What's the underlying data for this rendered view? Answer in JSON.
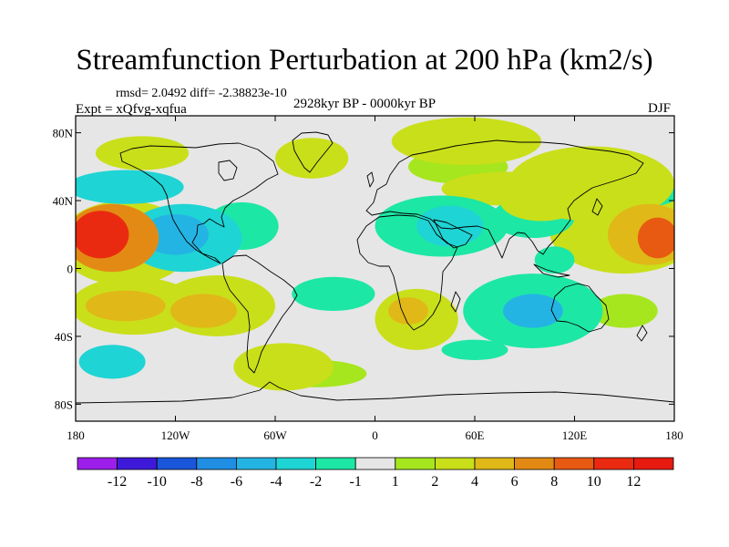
{
  "chart_data": {
    "type": "heatmap",
    "title": "Streamfunction Perturbation at 200 hPa (km2/s)",
    "stats_line": "rmsd= 2.0492 diff= -2.38823e-10",
    "experiment": "Expt = xQfvg-xqfua",
    "period": "2928kyr BP - 0000kyr BP",
    "season": "DJF",
    "x_range": [
      -180,
      180
    ],
    "y_range": [
      -90,
      90
    ],
    "y_ticks": [
      {
        "value": 80,
        "label": "80N"
      },
      {
        "value": 40,
        "label": "40N"
      },
      {
        "value": 0,
        "label": "0"
      },
      {
        "value": -40,
        "label": "40S"
      },
      {
        "value": -80,
        "label": "80S"
      }
    ],
    "x_ticks": [
      {
        "value": -180,
        "label": "180"
      },
      {
        "value": -120,
        "label": "120W"
      },
      {
        "value": -60,
        "label": "60W"
      },
      {
        "value": 0,
        "label": "0"
      },
      {
        "value": 60,
        "label": "60E"
      },
      {
        "value": 120,
        "label": "120E"
      },
      {
        "value": 180,
        "label": "180"
      }
    ],
    "colorbar": {
      "levels": [
        "-12",
        "-10",
        "-8",
        "-6",
        "-4",
        "-2",
        "-1",
        "1",
        "2",
        "4",
        "6",
        "8",
        "10",
        "12"
      ],
      "colors": [
        "#9c1eea",
        "#3f19d9",
        "#1a56d9",
        "#1f8ee3",
        "#24b4e3",
        "#1fd4d4",
        "#1de7a5",
        "#e6e6e6",
        "#a6e61f",
        "#c9df1a",
        "#e0b818",
        "#e38a14",
        "#e85a12",
        "#ea2a10",
        "#e61a0f"
      ]
    },
    "blobs": [
      {
        "lon": -165,
        "lat": 20,
        "rlon": 17,
        "rlat": 14,
        "v": 10
      },
      {
        "lon": -158,
        "lat": 18,
        "rlon": 28,
        "rlat": 20,
        "v": 6
      },
      {
        "lon": -150,
        "lat": 15,
        "rlon": 40,
        "rlat": 25,
        "v": 2.5
      },
      {
        "lon": 170,
        "lat": 18,
        "rlon": 12,
        "rlat": 12,
        "v": 8
      },
      {
        "lon": 165,
        "lat": 20,
        "rlon": 25,
        "rlat": 18,
        "v": 4.5
      },
      {
        "lon": 150,
        "lat": 22,
        "rlon": 45,
        "rlat": 25,
        "v": 2
      },
      {
        "lon": 130,
        "lat": 50,
        "rlon": 50,
        "rlat": 22,
        "v": 2.5
      },
      {
        "lon": 100,
        "lat": 40,
        "rlon": 25,
        "rlat": 12,
        "v": 2.5
      },
      {
        "lon": 55,
        "lat": 75,
        "rlon": 45,
        "rlat": 14,
        "v": 2.5
      },
      {
        "lon": 50,
        "lat": 60,
        "rlon": 30,
        "rlat": 10,
        "v": 1.5
      },
      {
        "lon": 80,
        "lat": 47,
        "rlon": 40,
        "rlat": 10,
        "v": 2
      },
      {
        "lon": -140,
        "lat": 68,
        "rlon": 28,
        "rlat": 10,
        "v": 2.5
      },
      {
        "lon": -38,
        "lat": 65,
        "rlon": 22,
        "rlat": 12,
        "v": 3
      },
      {
        "lon": -150,
        "lat": 48,
        "rlon": 35,
        "rlat": 10,
        "v": -2.5
      },
      {
        "lon": 168,
        "lat": 45,
        "rlon": 15,
        "rlat": 8,
        "v": -2
      },
      {
        "lon": -120,
        "lat": 20,
        "rlon": 20,
        "rlat": 12,
        "v": -5
      },
      {
        "lon": -115,
        "lat": 18,
        "rlon": 35,
        "rlat": 20,
        "v": -2.5
      },
      {
        "lon": -80,
        "lat": 25,
        "rlon": 22,
        "rlat": 14,
        "v": -2
      },
      {
        "lon": 45,
        "lat": 25,
        "rlon": 20,
        "rlat": 12,
        "v": -4
      },
      {
        "lon": 40,
        "lat": 25,
        "rlon": 40,
        "rlat": 18,
        "v": -2
      },
      {
        "lon": 95,
        "lat": 30,
        "rlon": 25,
        "rlat": 12,
        "v": -2
      },
      {
        "lon": 108,
        "lat": 5,
        "rlon": 12,
        "rlat": 8,
        "v": -2
      },
      {
        "lon": -25,
        "lat": -15,
        "rlon": 25,
        "rlat": 10,
        "v": -2
      },
      {
        "lon": 95,
        "lat": -25,
        "rlon": 18,
        "rlat": 10,
        "v": -4.5
      },
      {
        "lon": 95,
        "lat": -25,
        "rlon": 42,
        "rlat": 22,
        "v": -2
      },
      {
        "lon": 60,
        "lat": -48,
        "rlon": 20,
        "rlat": 6,
        "v": -2
      },
      {
        "lon": -158,
        "lat": -55,
        "rlon": 20,
        "rlat": 10,
        "v": -2.5
      },
      {
        "lon": -145,
        "lat": -22,
        "rlon": 38,
        "rlat": 17,
        "v": 2
      },
      {
        "lon": -150,
        "lat": -22,
        "rlon": 24,
        "rlat": 9,
        "v": 4
      },
      {
        "lon": -103,
        "lat": -25,
        "rlon": 20,
        "rlat": 10,
        "v": 4.5
      },
      {
        "lon": -95,
        "lat": -22,
        "rlon": 35,
        "rlat": 18,
        "v": 2
      },
      {
        "lon": 25,
        "lat": -30,
        "rlon": 25,
        "rlat": 18,
        "v": 2.5
      },
      {
        "lon": 20,
        "lat": -25,
        "rlon": 12,
        "rlat": 8,
        "v": 4
      },
      {
        "lon": 150,
        "lat": -25,
        "rlon": 20,
        "rlat": 10,
        "v": 1.5
      },
      {
        "lon": -55,
        "lat": -58,
        "rlon": 30,
        "rlat": 14,
        "v": 2.5
      },
      {
        "lon": -35,
        "lat": -62,
        "rlon": 30,
        "rlat": 8,
        "v": 1.5
      }
    ]
  }
}
